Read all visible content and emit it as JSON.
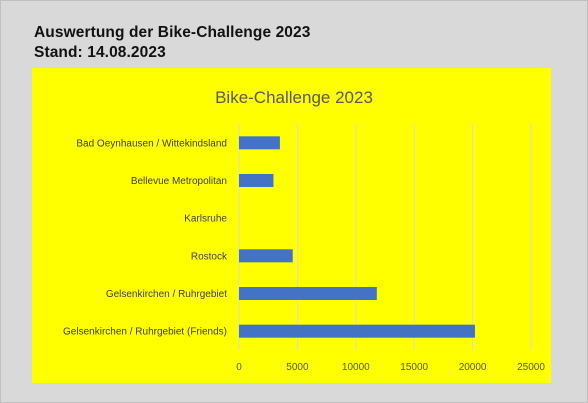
{
  "header": {
    "line1": "Auswertung der Bike-Challenge 2023",
    "line2": "Stand: 14.08.2023"
  },
  "colors": {
    "background": "#d9d9d9",
    "chart_background": "#ffff00",
    "bar": "#4472c4"
  },
  "chart_data": {
    "type": "bar",
    "orientation": "horizontal",
    "title": "Bike-Challenge 2023",
    "categories": [
      "Bad Oeynhausen / Wittekindsland",
      "Bellevue Metropolitan",
      "Karlsruhe",
      "Rostock",
      "Gelsenkirchen / Ruhrgebiet",
      "Gelsenkirchen / Ruhrgebiet (Friends)"
    ],
    "values": [
      3500,
      2950,
      0,
      4600,
      11800,
      20200
    ],
    "xlim": [
      0,
      25000
    ],
    "xticks": [
      0,
      5000,
      10000,
      15000,
      20000,
      25000
    ],
    "grid": true,
    "legend": false
  }
}
